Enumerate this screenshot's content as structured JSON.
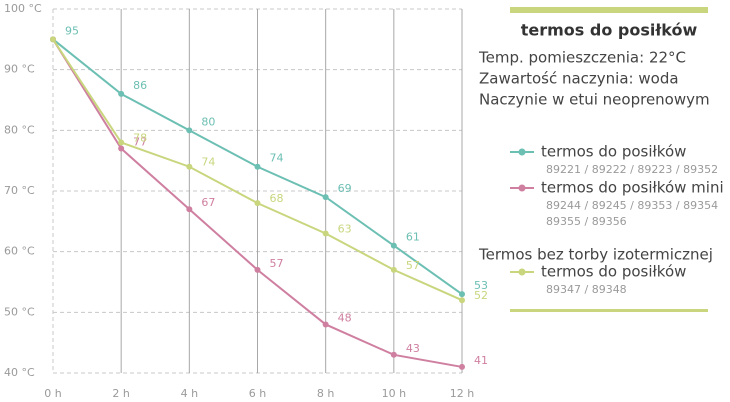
{
  "chart_data": {
    "type": "line",
    "title": "termos do posiłków",
    "notes": [
      "Temp. pomieszczenia: 22°C",
      "Zawartość naczynia: woda",
      "Naczynie w etui neoprenowym"
    ],
    "legend_group_heading": "Termos bez torby izotermicznej",
    "categories": [
      "0 h",
      "2 h",
      "4 h",
      "6 h",
      "8 h",
      "10 h",
      "12 h"
    ],
    "series": [
      {
        "name": "termos do posiłków",
        "color": "#6cbfb3",
        "values": [
          95,
          86,
          80,
          74,
          69,
          61,
          53
        ],
        "codes": [
          "89221 / 89222 / 89223 / 89352"
        ]
      },
      {
        "name": "termos do posiłków mini",
        "color": "#cf7fa0",
        "values": [
          95,
          77,
          67,
          57,
          48,
          43,
          41
        ],
        "codes": [
          "89244 / 89245 / 89353 / 89354",
          "89355 / 89356"
        ]
      },
      {
        "name": "termos do posiłków",
        "color": "#c9d67e",
        "values": [
          95,
          78,
          74,
          68,
          63,
          57,
          52
        ],
        "codes": [
          "89347 / 89348"
        ]
      }
    ],
    "ylim": [
      40,
      100
    ],
    "yticks": [
      {
        "value": 40,
        "label": "40 °C"
      },
      {
        "value": 50,
        "label": "50 °C"
      },
      {
        "value": 60,
        "label": "60 °C"
      },
      {
        "value": 70,
        "label": "70 °C"
      },
      {
        "value": 80,
        "label": "80 °C"
      },
      {
        "value": 90,
        "label": "90 °C"
      },
      {
        "value": 100,
        "label": "100 °C"
      }
    ],
    "grid": true
  }
}
